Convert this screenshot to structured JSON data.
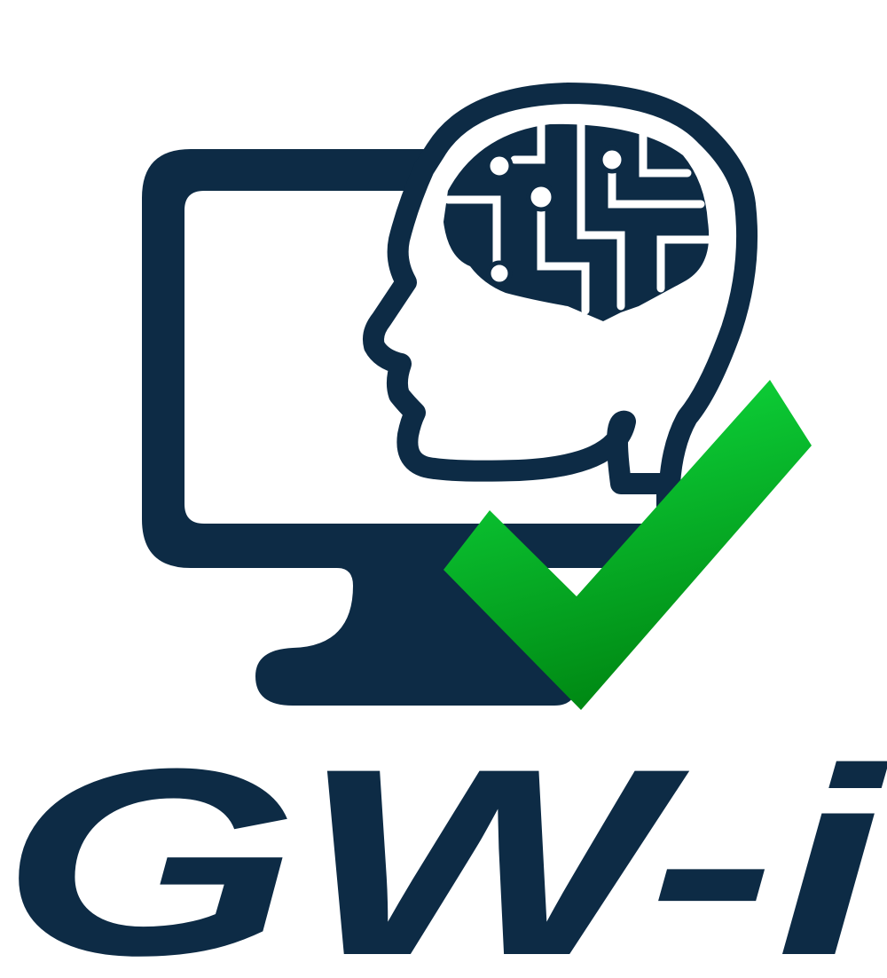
{
  "logo": {
    "wordmark": "GW-i"
  }
}
